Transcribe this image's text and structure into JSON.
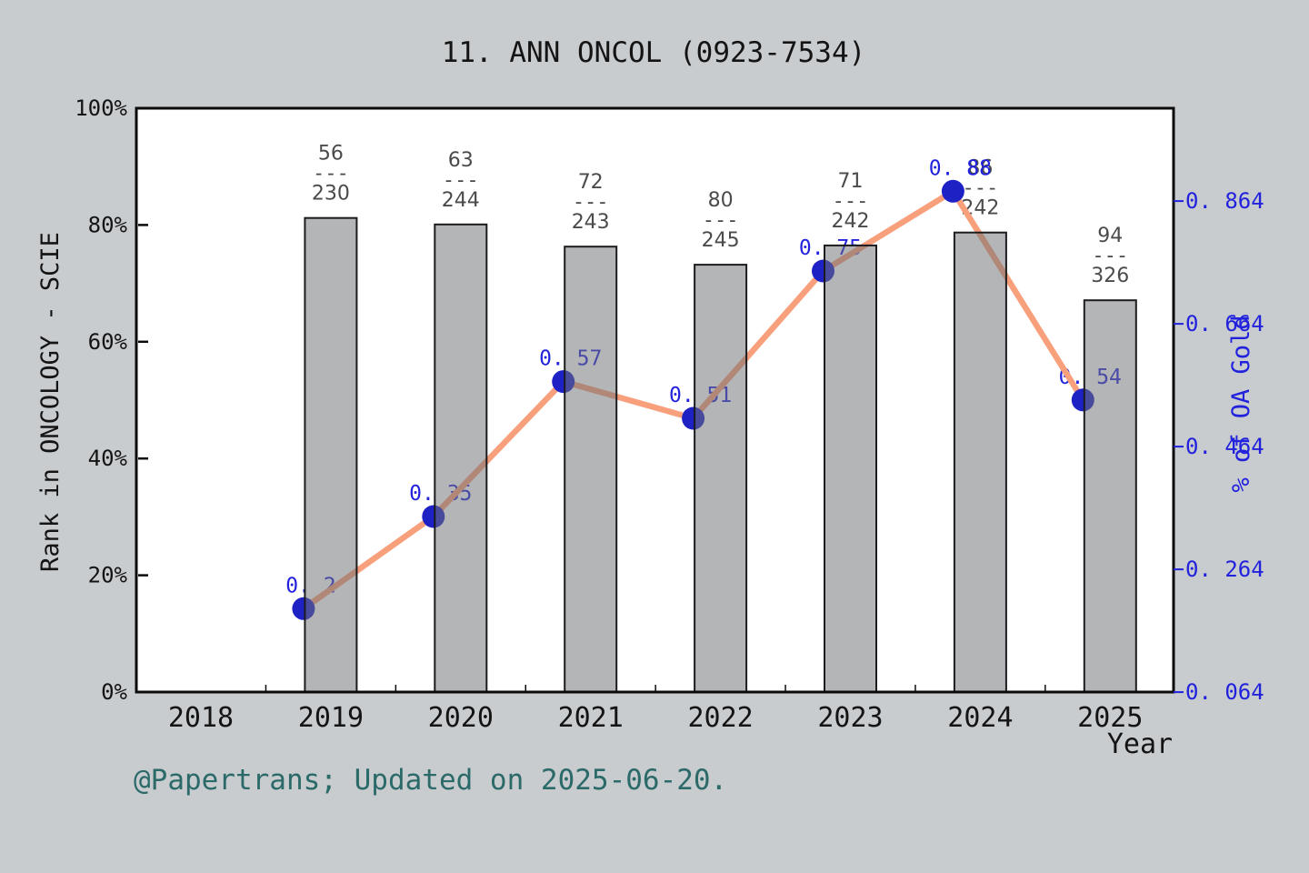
{
  "title": "11. ANN ONCOL (0923-7534)",
  "footer": "@Papertrans; Updated on 2025-06-20.",
  "axes": {
    "x": {
      "label": "Year",
      "ticks": [
        "2018",
        "2019",
        "2020",
        "2021",
        "2022",
        "2023",
        "2024",
        "2025"
      ]
    },
    "left": {
      "label": "Rank in ONCOLOGY - SCIE",
      "ticks": [
        "0%",
        "20%",
        "40%",
        "60%",
        "80%",
        "100%"
      ],
      "tick_pcts": [
        0,
        20,
        40,
        60,
        80,
        100
      ]
    },
    "right": {
      "label": "% of OA Gold",
      "tick_labels": [
        "0. 064",
        "0. 264",
        "0. 464",
        "0. 664",
        "0. 864"
      ],
      "tick_values": [
        0.064,
        0.264,
        0.464,
        0.664,
        0.864
      ]
    }
  },
  "chart_data": {
    "type": "combo",
    "x_categories": [
      2018,
      2019,
      2020,
      2021,
      2022,
      2023,
      2024,
      2025
    ],
    "series": [
      {
        "name": "Rank in ONCOLOGY - SCIE",
        "type": "bar",
        "axis": "left",
        "categories": [
          2019,
          2020,
          2021,
          2022,
          2023,
          2024,
          2025
        ],
        "ranks": [
          56,
          63,
          72,
          80,
          71,
          86,
          94
        ],
        "totals": [
          230,
          244,
          243,
          245,
          242,
          242,
          326
        ],
        "rank_labels": [
          "56/230",
          "63/244",
          "72/243",
          "80/245",
          "71/242",
          "86/242",
          "94/326"
        ],
        "fraction_separator": "---",
        "bar_top_pct": [
          81.2,
          80.1,
          76.3,
          73.2,
          76.5,
          78.7,
          67.1
        ]
      },
      {
        "name": "% of OA Gold",
        "type": "line",
        "axis": "right",
        "categories": [
          2019,
          2020,
          2021,
          2022,
          2023,
          2024,
          2025
        ],
        "values": [
          0.2,
          0.35,
          0.57,
          0.51,
          0.75,
          0.88,
          0.54
        ],
        "point_labels": [
          "0. 2",
          "0. 35",
          "0. 57",
          "0. 51",
          "0. 75",
          "0. 88",
          "0. 54"
        ]
      }
    ],
    "left_axis_range_pct": [
      0,
      100
    ],
    "right_axis_approx_range": [
      0.068,
      1.019
    ],
    "grid": "off",
    "legend": "none"
  },
  "colors": {
    "figure_bg": "#c8cccf",
    "plot_bg": "#ffffff",
    "axis_line": "#0b0b0b",
    "bar_fill_rgba": "rgba(112,114,117,0.52)",
    "bar_edge": "#1c1c1e",
    "line": "#f89f7c",
    "dot": "#1e22c4",
    "blue_text": "#2222dd",
    "fraction_text": "#4b4b4b",
    "footer_text": "#2b6a69",
    "black_text": "#141414"
  }
}
